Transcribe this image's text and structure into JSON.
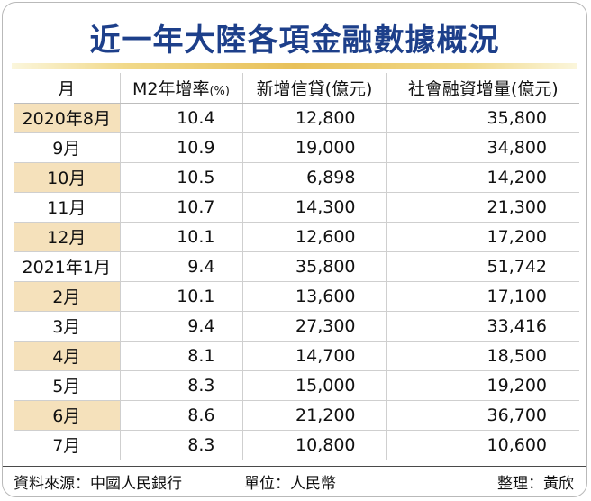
{
  "title": "近一年大陸各項金融數據概況",
  "table": {
    "headers": {
      "month": "月",
      "m2": "M2年增率",
      "m2_unit": "(%)",
      "loans": "新增信貸(億元)",
      "afre": "社會融資增量(億元)"
    },
    "rows": [
      {
        "month": "2020年8月",
        "m2": "10.4",
        "loans": "12,800",
        "afre": "35,800"
      },
      {
        "month": "9月",
        "m2": "10.9",
        "loans": "19,000",
        "afre": "34,800"
      },
      {
        "month": "10月",
        "m2": "10.5",
        "loans": "6,898",
        "afre": "14,200"
      },
      {
        "month": "11月",
        "m2": "10.7",
        "loans": "14,300",
        "afre": "21,300"
      },
      {
        "month": "12月",
        "m2": "10.1",
        "loans": "12,600",
        "afre": "17,200"
      },
      {
        "month": "2021年1月",
        "m2": "9.4",
        "loans": "35,800",
        "afre": "51,742"
      },
      {
        "month": "2月",
        "m2": "10.1",
        "loans": "13,600",
        "afre": "17,100"
      },
      {
        "month": "3月",
        "m2": "9.4",
        "loans": "27,300",
        "afre": "33,416"
      },
      {
        "month": "4月",
        "m2": "8.1",
        "loans": "14,700",
        "afre": "18,500"
      },
      {
        "month": "5月",
        "m2": "8.3",
        "loans": "15,000",
        "afre": "19,200"
      },
      {
        "month": "6月",
        "m2": "8.6",
        "loans": "21,200",
        "afre": "36,700"
      },
      {
        "month": "7月",
        "m2": "8.3",
        "loans": "10,800",
        "afre": "10,600"
      }
    ]
  },
  "footer": {
    "source": "資料來源：中國人民銀行",
    "unit": "單位：人民幣",
    "editor": "整理：黃欣"
  },
  "colors": {
    "title": "#1d3f8a",
    "title_rule": "#e8c15a",
    "shaded_month_cell": "#f5e1bb"
  }
}
